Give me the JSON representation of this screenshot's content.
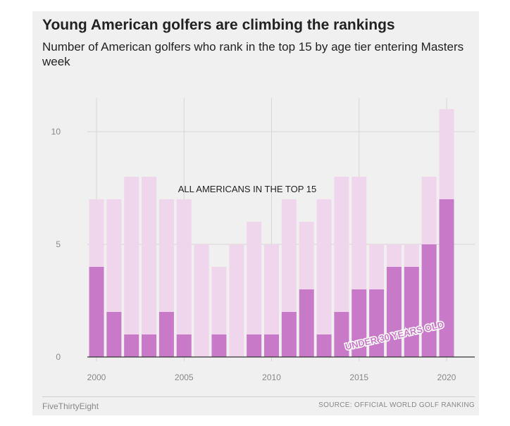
{
  "chart_data": {
    "type": "bar",
    "title": "Young American golfers are climbing the rankings",
    "subtitle": "Number of American golfers who rank in the top 15 by age tier entering Masters week",
    "x": [
      2000,
      2001,
      2002,
      2003,
      2004,
      2005,
      2006,
      2007,
      2008,
      2009,
      2010,
      2011,
      2012,
      2013,
      2014,
      2015,
      2016,
      2017,
      2018,
      2019,
      2020
    ],
    "series": [
      {
        "name": "ALL AMERICANS IN THE TOP 15",
        "values": [
          7,
          7,
          8,
          8,
          7,
          7,
          5,
          4,
          5,
          6,
          5,
          7,
          6,
          7,
          8,
          8,
          5,
          5,
          5,
          8,
          11
        ]
      },
      {
        "name": "UNDER 30 YEARS OLD",
        "values": [
          4,
          2,
          1,
          1,
          2,
          1,
          0,
          1,
          0,
          1,
          1,
          2,
          3,
          1,
          2,
          3,
          3,
          4,
          4,
          5,
          7
        ]
      }
    ],
    "ylim": [
      0,
      11.5
    ],
    "yticks": [
      0,
      5,
      10
    ],
    "xticks": [
      2000,
      2005,
      2010,
      2015,
      2020
    ],
    "grid": true,
    "colors": {
      "all": "#f0d6ec",
      "under30": "#c87ac9",
      "grid": "#d6d6d6",
      "baseline": "#333333",
      "tick_text": "#888888",
      "label_text": "#222222"
    }
  },
  "footer": {
    "brand": "FiveThirtyEight",
    "source": "SOURCE: OFFICIAL WORLD GOLF RANKING"
  }
}
